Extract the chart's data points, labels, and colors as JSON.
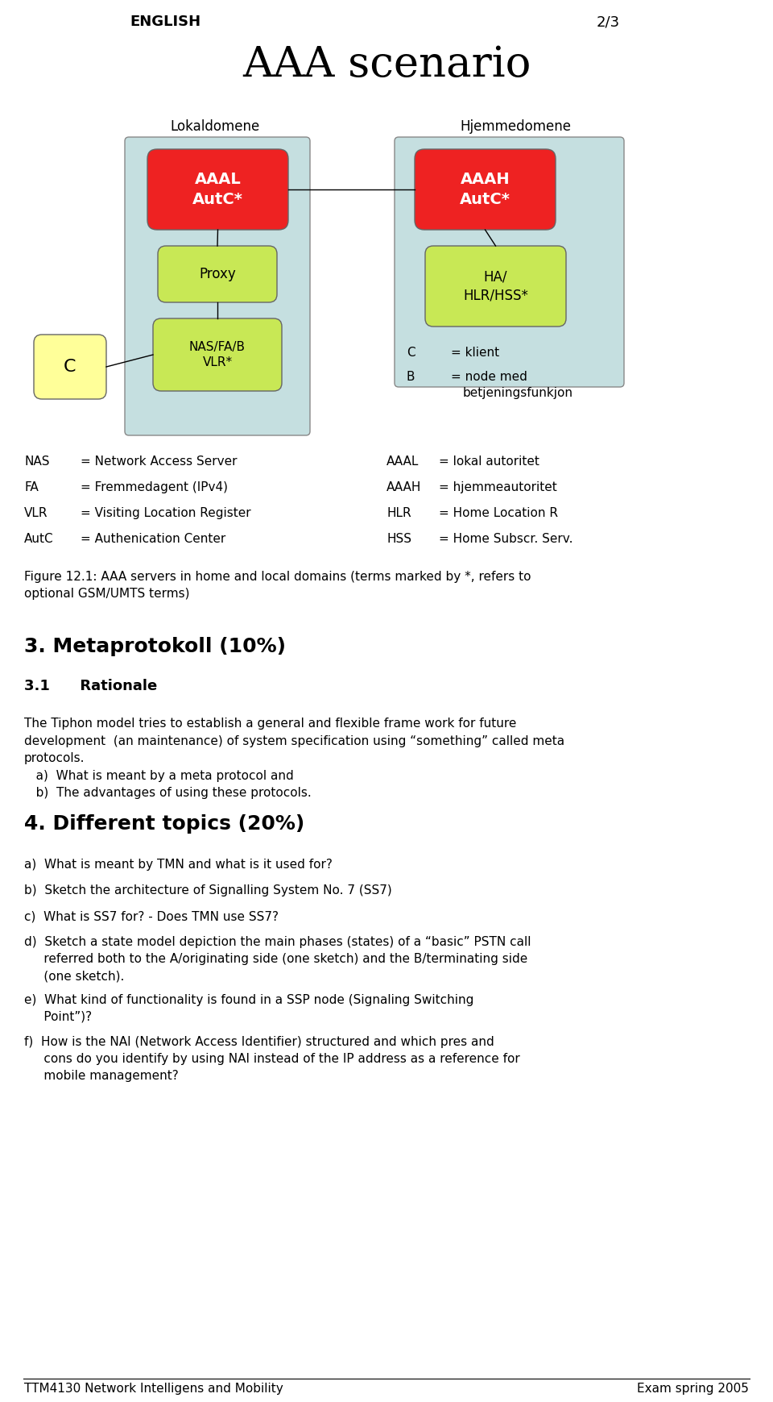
{
  "header_left": "ENGLISH",
  "header_right": "2/3",
  "title": "AAA scenario",
  "local_label": "Lokaldomene",
  "home_label": "Hjemmedomene",
  "box_local_bg": "#c5dfe0",
  "box_home_bg": "#c5dfe0",
  "red_box_color": "#ee2222",
  "green_box_color": "#c8e855",
  "yellow_box_color": "#ffff99",
  "aaal_text": "AAAL\nAutC*",
  "aaah_text": "AAAH\nAutC*",
  "proxy_text": "Proxy",
  "ha_text": "HA/\nHLR/HSS*",
  "nasfab_text": "NAS/FA/B\nVLR*",
  "c_text": "C",
  "figure_caption": "Figure 12.1: AAA servers in home and local domains (terms marked by *, refers to\noptional GSM/UMTS terms)",
  "section3_title": "3. Metaprotokoll (10%)",
  "section31_title": "3.1      Rationale",
  "section3_body": "The Tiphon model tries to establish a general and flexible frame work for future\ndevelopment  (an maintenance) of system specification using “something” called meta\nprotocols.\n   a)  What is meant by a meta protocol and\n   b)  The advantages of using these protocols.",
  "section4_title": "4. Different topics (20%)",
  "section4_items": [
    "a)  What is meant by TMN and what is it used for?",
    "b)  Sketch the architecture of Signalling System No. 7 (SS7)",
    "c)  What is SS7 for? - Does TMN use SS7?",
    "d)  Sketch a state model depiction the main phases (states) of a “basic” PSTN call\n     referred both to the A/originating side (one sketch) and the B/terminating side\n     (one sketch).",
    "e)  What kind of functionality is found in a SSP node (Signaling Switching\n     Point”)?",
    "f)  How is the NAI (Network Access Identifier) structured and which pres and\n     cons do you identify by using NAI instead of the IP address as a reference for\n     mobile management?"
  ],
  "footer_left": "TTM4130 Network Intelligens and Mobility",
  "footer_right": "Exam spring 2005",
  "bg_color": "#ffffff"
}
